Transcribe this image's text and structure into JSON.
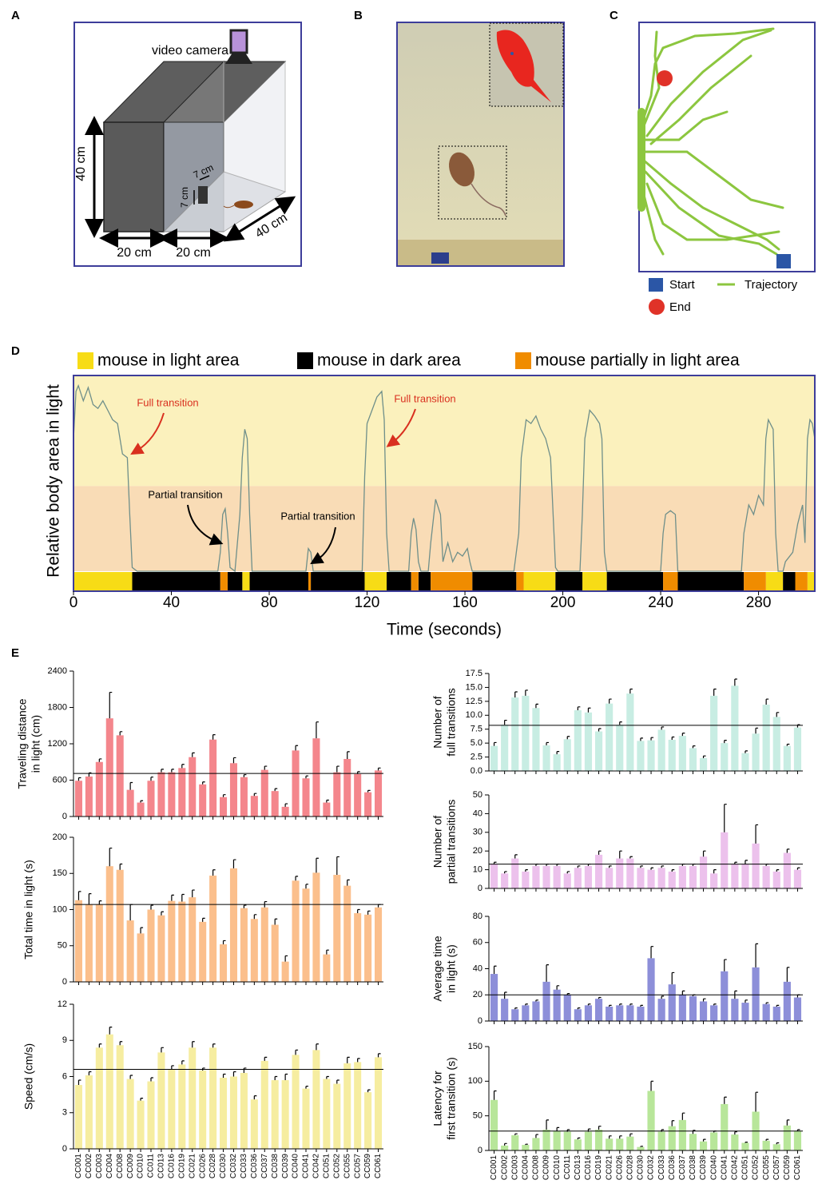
{
  "panel_labels": [
    "A",
    "B",
    "C",
    "D",
    "E"
  ],
  "panels": {
    "A": {
      "camera": "video camera",
      "height": "40 cm",
      "door_width": "7 cm",
      "door_height": "7 cm",
      "dark_width": "20 cm",
      "light_width": "20 cm",
      "depth": "40 cm"
    },
    "C": {
      "start": "Start",
      "trajectory": "Trajectory",
      "end": "End"
    }
  },
  "chart_data": [
    {
      "type": "line",
      "ylabel": "Relative body area in light",
      "xlabel": "Time (seconds)",
      "xlim": [
        0,
        303
      ],
      "xticks": [
        0,
        40,
        80,
        120,
        160,
        200,
        240,
        280
      ],
      "ylim": [
        0,
        1
      ],
      "partial_threshold": 0.45,
      "color": "#6f8f8a",
      "annotations": [
        "Full transition",
        "Full transition",
        "Partial transition",
        "Partial transition"
      ],
      "x": [
        0,
        1,
        2,
        4,
        6,
        8,
        10,
        12,
        14,
        16,
        18,
        20,
        22,
        23,
        24,
        26,
        59,
        60,
        61,
        62,
        63,
        64,
        66,
        68,
        69,
        70,
        71,
        72,
        73,
        95,
        96,
        97,
        98,
        118,
        119,
        120,
        122,
        124,
        126,
        127,
        128,
        129,
        137,
        138,
        139,
        140,
        141,
        142,
        145,
        146,
        148,
        150,
        151,
        153,
        155,
        157,
        159,
        161,
        162,
        163,
        180,
        182,
        183,
        185,
        187,
        189,
        191,
        193,
        195,
        197,
        198,
        207,
        208,
        209,
        211,
        213,
        215,
        216,
        217,
        218,
        240,
        241,
        242,
        244,
        246,
        247,
        273,
        274,
        276,
        278,
        280,
        282,
        283,
        284,
        286,
        287,
        288,
        290,
        291,
        294,
        296,
        298,
        299,
        300,
        301,
        302,
        303
      ],
      "values": [
        0.7,
        0.95,
        0.98,
        0.9,
        0.97,
        0.88,
        0.86,
        0.9,
        0.85,
        0.8,
        0.78,
        0.62,
        0.6,
        0.3,
        0.02,
        0,
        0,
        0.1,
        0.3,
        0.33,
        0.2,
        0.02,
        0,
        0.3,
        0.6,
        0.75,
        0.7,
        0.3,
        0,
        0,
        0.12,
        0.1,
        0,
        0,
        0.5,
        0.78,
        0.85,
        0.92,
        0.95,
        0.8,
        0.2,
        0,
        0,
        0.2,
        0.28,
        0.22,
        0.05,
        0,
        0,
        0.15,
        0.38,
        0.3,
        0.05,
        0.15,
        0.05,
        0.1,
        0.08,
        0.12,
        0.05,
        0,
        0,
        0.2,
        0.6,
        0.8,
        0.78,
        0.82,
        0.75,
        0.7,
        0.6,
        0.02,
        0,
        0,
        0.3,
        0.7,
        0.85,
        0.82,
        0.78,
        0.7,
        0.1,
        0,
        0,
        0.2,
        0.3,
        0.32,
        0.3,
        0,
        0,
        0.2,
        0.35,
        0.3,
        0.4,
        0.35,
        0.7,
        0.8,
        0.75,
        0.2,
        0,
        0,
        0.05,
        0.1,
        0.25,
        0.35,
        0.15,
        0.7,
        0.8,
        0.78,
        0.7
      ],
      "states": [
        {
          "name": "mouse in light area",
          "color": "#f7dc16",
          "intervals": [
            [
              0,
              24
            ],
            [
              69,
              72
            ],
            [
              119,
              128
            ],
            [
              184,
              197
            ],
            [
              208,
              218
            ],
            [
              283,
              290
            ],
            [
              300,
              303
            ]
          ]
        },
        {
          "name": "mouse in dark area",
          "color": "#000000",
          "intervals": [
            [
              24,
              60
            ],
            [
              63,
              69
            ],
            [
              72,
              96
            ],
            [
              97,
              119
            ],
            [
              128,
              138
            ],
            [
              141,
              146
            ],
            [
              163,
              181
            ],
            [
              197,
              208
            ],
            [
              218,
              241
            ],
            [
              247,
              274
            ],
            [
              290,
              295
            ]
          ]
        },
        {
          "name": "mouse partially in light area",
          "color": "#f08c00",
          "intervals": [
            [
              60,
              63
            ],
            [
              96,
              97
            ],
            [
              138,
              141
            ],
            [
              146,
              163
            ],
            [
              181,
              184
            ],
            [
              241,
              247
            ],
            [
              274,
              283
            ],
            [
              295,
              300
            ]
          ]
        }
      ]
    },
    {
      "type": "bar",
      "ylabel": [
        "Traveling distance",
        "in light (cm)"
      ],
      "color": "#f4868c",
      "ylim": [
        0,
        2400
      ],
      "yticks": [
        0,
        600,
        1200,
        1800,
        2400
      ],
      "mean": 710,
      "values": [
        590,
        660,
        900,
        1620,
        1340,
        440,
        230,
        590,
        730,
        730,
        800,
        980,
        530,
        1270,
        320,
        880,
        650,
        340,
        770,
        420,
        160,
        1090,
        630,
        1290,
        230,
        730,
        950,
        700,
        400,
        760
      ],
      "errors": [
        50,
        60,
        50,
        430,
        60,
        120,
        30,
        60,
        50,
        50,
        60,
        70,
        40,
        80,
        40,
        90,
        40,
        40,
        60,
        40,
        50,
        80,
        40,
        270,
        40,
        100,
        120,
        40,
        30,
        40
      ]
    },
    {
      "type": "bar",
      "ylabel": [
        "Total time in light (s)"
      ],
      "color": "#fbbf8c",
      "ylim": [
        0,
        200
      ],
      "yticks": [
        0,
        50,
        100,
        150,
        200
      ],
      "mean": 107,
      "values": [
        113,
        107,
        107,
        160,
        155,
        85,
        67,
        100,
        92,
        112,
        111,
        117,
        83,
        147,
        52,
        157,
        102,
        87,
        103,
        79,
        28,
        140,
        129,
        151,
        38,
        148,
        133,
        95,
        93,
        103
      ],
      "errors": [
        12,
        15,
        5,
        25,
        8,
        22,
        8,
        6,
        5,
        8,
        10,
        10,
        5,
        8,
        5,
        12,
        4,
        6,
        8,
        8,
        8,
        6,
        6,
        20,
        6,
        25,
        8,
        5,
        5,
        4
      ]
    },
    {
      "type": "bar",
      "ylabel": [
        "Speed (cm/s)"
      ],
      "color": "#f6eda0",
      "ylim": [
        0,
        12
      ],
      "yticks": [
        0,
        3,
        6,
        9,
        12
      ],
      "mean": 6.6,
      "categories": [
        "CC001",
        "CC002",
        "CC003",
        "CC004",
        "CC008",
        "CC009",
        "CC010",
        "CC011",
        "CC013",
        "CC016",
        "CC019",
        "CC021",
        "CC026",
        "CC028",
        "CC030",
        "CC032",
        "CC033",
        "CC036",
        "CC037",
        "CC038",
        "CC039",
        "CC040",
        "CC041",
        "CC042",
        "CC051",
        "CC052",
        "CC055",
        "CC057",
        "CC059",
        "CC061"
      ],
      "values": [
        5.3,
        6.1,
        8.4,
        9.5,
        8.6,
        5.8,
        4.0,
        5.6,
        8.0,
        6.6,
        7.0,
        8.4,
        6.5,
        8.4,
        5.9,
        6.0,
        6.3,
        4.1,
        7.3,
        5.7,
        5.7,
        7.8,
        5.0,
        8.2,
        5.8,
        5.4,
        7.1,
        7.2,
        4.7,
        7.6
      ],
      "errors": [
        0.4,
        0.3,
        0.3,
        0.6,
        0.3,
        0.3,
        0.2,
        0.3,
        0.4,
        0.3,
        0.3,
        0.5,
        0.2,
        0.3,
        0.3,
        0.4,
        0.4,
        0.3,
        0.3,
        0.3,
        0.5,
        0.4,
        0.2,
        0.5,
        0.2,
        0.3,
        0.5,
        0.3,
        0.2,
        0.3
      ]
    },
    {
      "type": "bar",
      "ylabel": [
        "Number of",
        "full transitions"
      ],
      "color": "#c8ede3",
      "ylim": [
        0,
        17.5
      ],
      "yticks": [
        {
          "value": 0,
          "label": "0.0"
        },
        2.5,
        {
          "value": 5,
          "label": "5.0"
        },
        7.5,
        {
          "value": 10,
          "label": "10.0"
        },
        12.5,
        {
          "value": 15,
          "label": "15.0"
        },
        17.5
      ],
      "mean": 8.2,
      "values": [
        4.5,
        8.3,
        13.2,
        13.5,
        11.3,
        4.6,
        3.0,
        5.7,
        10.9,
        10.5,
        7.1,
        12.1,
        8.3,
        13.9,
        5.4,
        5.5,
        7.4,
        5.6,
        6.3,
        4.1,
        2.3,
        13.5,
        5.0,
        15.3,
        3.2,
        6.7,
        11.9,
        9.7,
        4.5,
        7.8
      ],
      "errors": [
        0.6,
        0.8,
        1.0,
        1.0,
        0.7,
        0.5,
        0.5,
        0.5,
        0.6,
        0.8,
        0.5,
        0.8,
        0.5,
        0.8,
        0.5,
        0.5,
        0.5,
        0.5,
        0.5,
        0.4,
        0.4,
        1.2,
        0.5,
        1.2,
        0.4,
        1.0,
        1.0,
        0.8,
        0.3,
        0.5
      ]
    },
    {
      "type": "bar",
      "ylabel": [
        "Number of",
        "partial transitions"
      ],
      "color": "#ecc1ec",
      "ylim": [
        0,
        50
      ],
      "yticks": [
        0,
        10,
        20,
        30,
        40,
        50
      ],
      "mean": 13,
      "values": [
        13,
        8,
        16,
        9,
        12,
        12,
        12,
        8,
        11,
        12,
        18,
        11,
        16,
        16,
        11,
        10,
        11,
        9,
        12,
        12,
        17,
        8,
        30,
        13,
        13,
        24,
        12,
        9,
        19,
        10
      ],
      "errors": [
        1,
        1,
        2,
        1,
        1,
        1,
        1,
        1,
        1,
        1,
        2,
        1,
        4,
        1,
        1,
        1,
        1,
        1,
        1,
        1,
        3,
        2,
        15,
        1,
        2,
        10,
        1,
        1,
        2,
        1
      ]
    },
    {
      "type": "bar",
      "ylabel": [
        "Average time",
        "in light (s)"
      ],
      "color": "#8d8fd9",
      "ylim": [
        0,
        80
      ],
      "yticks": [
        0,
        20,
        40,
        60,
        80
      ],
      "mean": 20,
      "values": [
        36,
        17,
        9,
        12,
        15,
        30,
        24,
        20,
        9,
        12,
        17,
        11,
        12,
        12,
        11,
        48,
        17,
        28,
        20,
        19,
        15,
        12,
        38,
        17,
        14,
        41,
        13,
        11,
        30,
        18
      ],
      "errors": [
        6,
        5,
        1,
        1,
        1,
        13,
        3,
        1,
        1,
        1,
        1,
        1,
        1,
        1,
        1,
        9,
        2,
        9,
        3,
        1,
        2,
        1,
        9,
        6,
        2,
        18,
        1,
        1,
        11,
        2
      ]
    },
    {
      "type": "bar",
      "ylabel": [
        "Latency for",
        "first transition (s)"
      ],
      "color": "#b8e69a",
      "ylim": [
        0,
        150
      ],
      "yticks": [
        0,
        50,
        100,
        150
      ],
      "mean": 28,
      "categories": [
        "CC001",
        "CC002",
        "CC003",
        "CC004",
        "CC008",
        "CC009",
        "CC010",
        "CC011",
        "CC013",
        "CC016",
        "CC019",
        "CC021",
        "CC026",
        "CC028",
        "CC030",
        "CC032",
        "CC033",
        "CC036",
        "CC037",
        "CC038",
        "CC039",
        "CC040",
        "CC041",
        "CC042",
        "CC051",
        "CC052",
        "CC055",
        "CC057",
        "CC059",
        "CC061"
      ],
      "values": [
        73,
        7,
        22,
        8,
        18,
        30,
        28,
        27,
        16,
        27,
        30,
        17,
        17,
        20,
        5,
        86,
        27,
        35,
        44,
        24,
        13,
        26,
        67,
        23,
        11,
        56,
        14,
        9,
        36,
        28
      ],
      "errors": [
        13,
        3,
        2,
        1,
        5,
        14,
        5,
        3,
        2,
        4,
        5,
        4,
        4,
        4,
        1,
        14,
        3,
        8,
        10,
        5,
        3,
        2,
        10,
        4,
        1,
        28,
        2,
        2,
        8,
        2
      ]
    }
  ]
}
